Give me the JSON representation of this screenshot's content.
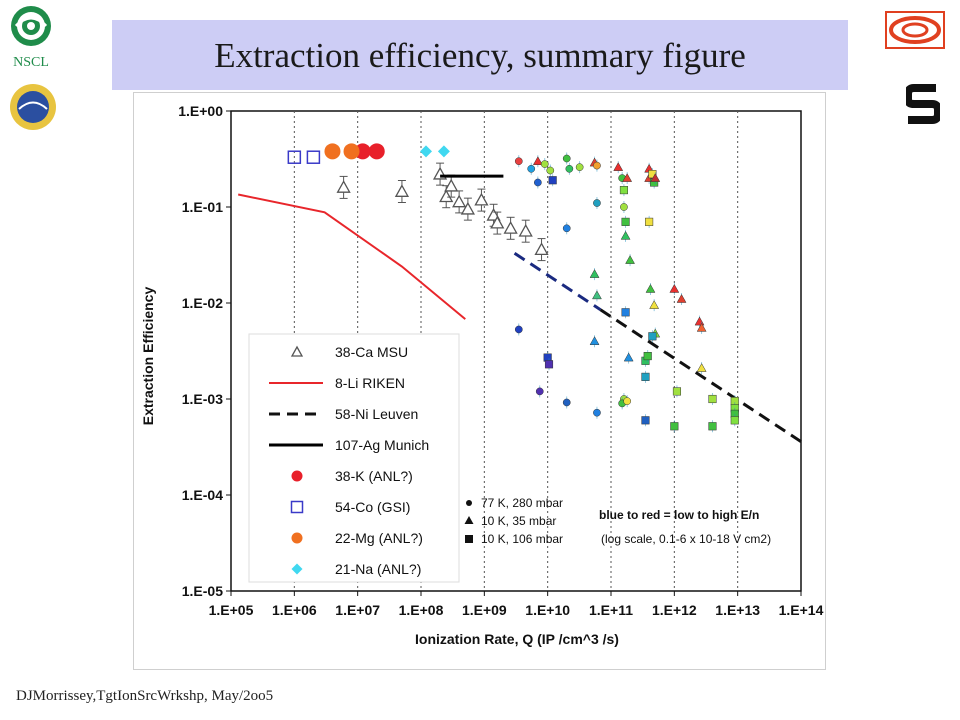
{
  "title": "Extraction efficiency, summary figure",
  "logos": {
    "nscl_text": "NSCL"
  },
  "footer": "DJMorrissey,TgtIonSrcWrkshp, May/2oo5",
  "colors": {
    "title_band": "#cdcdf5",
    "msu": "#555555",
    "riken": "#e8262b",
    "leuven": "#111111",
    "munich": "#000000",
    "anl_k": "#e8202a",
    "gsi": "#3a3ac8",
    "anl_mg": "#f07020",
    "anl_na": "#40d8f0"
  },
  "chart_data": {
    "type": "scatter",
    "xlabel": "Ionization Rate, Q (IP /cm^3 /s)",
    "ylabel": "Extraction Efficiency",
    "xscale": "log",
    "yscale": "log",
    "xlim": [
      100000,
      100000000000000
    ],
    "ylim": [
      1e-05,
      1
    ],
    "x_ticks": [
      "1.E+05",
      "1.E+06",
      "1.E+07",
      "1.E+08",
      "1.E+09",
      "1.E+10",
      "1.E+11",
      "1.E+12",
      "1.E+13",
      "1.E+14"
    ],
    "y_ticks": [
      "1.E+00",
      "1.E-01",
      "1.E-02",
      "1.E-03",
      "1.E-04",
      "1.E-05"
    ],
    "grid": "vertical-dotted",
    "legend_position": "lower-left",
    "series": [
      {
        "name": "38-Ca MSU",
        "kind": "open-triangle-errorbar",
        "color": "#555555",
        "points": [
          [
            6000000,
            0.16
          ],
          [
            50000000,
            0.145
          ],
          [
            200000000,
            0.22
          ],
          [
            250000000,
            0.128
          ],
          [
            300000000,
            0.165
          ],
          [
            400000000,
            0.113
          ],
          [
            550000000,
            0.095
          ],
          [
            900000000,
            0.118
          ],
          [
            1400000000,
            0.082
          ],
          [
            1600000000,
            0.068
          ],
          [
            2600000000,
            0.06
          ],
          [
            4500000000,
            0.056
          ],
          [
            8000000000,
            0.036
          ]
        ]
      },
      {
        "name": "8-Li RIKEN",
        "kind": "line",
        "color": "#e8262b",
        "points": [
          [
            130000,
            0.135
          ],
          [
            3000000,
            0.088
          ],
          [
            50000000,
            0.024
          ],
          [
            500000000,
            0.0068
          ]
        ]
      },
      {
        "name": "58-Ni Leuven",
        "kind": "dashed-line",
        "color": "#111111",
        "points": [
          [
            3000000000,
            0.033
          ],
          [
            100000000000000,
            0.00036
          ]
        ],
        "dash_colors": [
          "#1a2a80",
          "#111111"
        ]
      },
      {
        "name": "107-Ag Munich",
        "kind": "line",
        "color": "#000000",
        "points": [
          [
            200000000,
            0.21
          ],
          [
            2000000000,
            0.21
          ]
        ]
      },
      {
        "name": "38-K (ANL?)",
        "kind": "filled-circle",
        "color": "#e8202a",
        "points": [
          [
            12000000,
            0.38
          ],
          [
            20000000,
            0.38
          ]
        ]
      },
      {
        "name": "54-Co (GSI)",
        "kind": "open-square",
        "color": "#3a3ac8",
        "points": [
          [
            1000000,
            0.33
          ],
          [
            2000000,
            0.33
          ]
        ]
      },
      {
        "name": "22-Mg (ANL?)",
        "kind": "filled-circle",
        "color": "#f07020",
        "points": [
          [
            4000000,
            0.38
          ],
          [
            8000000,
            0.38
          ]
        ]
      },
      {
        "name": "21-Na (ANL?)",
        "kind": "filled-diamond",
        "color": "#40d8f0",
        "points": [
          [
            120000000,
            0.38
          ],
          [
            230000000,
            0.38
          ]
        ]
      }
    ],
    "scan_data": {
      "colormap_note": "blue to red = low to high E/n",
      "colormap_range": "(log scale, 0.1-6 x 10-18 V cm2)",
      "marker_legend": [
        {
          "shape": "circle",
          "label": "77 K, 280 mbar"
        },
        {
          "shape": "triangle",
          "label": "10 K, 35 mbar"
        },
        {
          "shape": "square",
          "label": "10 K, 106 mbar"
        }
      ],
      "points": [
        {
          "x": 3500000000,
          "y": 0.3,
          "shape": "circle",
          "color": "#e84040"
        },
        {
          "x": 5500000000,
          "y": 0.25,
          "shape": "circle",
          "color": "#20a0e0"
        },
        {
          "x": 7000000000,
          "y": 0.3,
          "shape": "triangle",
          "color": "#e83030"
        },
        {
          "x": 7000000000,
          "y": 0.18,
          "shape": "circle",
          "color": "#2060d0"
        },
        {
          "x": 9000000000,
          "y": 0.28,
          "shape": "circle",
          "color": "#a0e040"
        },
        {
          "x": 11000000000,
          "y": 0.24,
          "shape": "circle",
          "color": "#a0e040"
        },
        {
          "x": 12000000000,
          "y": 0.19,
          "shape": "square",
          "color": "#2040c0"
        },
        {
          "x": 20000000000,
          "y": 0.32,
          "shape": "circle",
          "color": "#40c040"
        },
        {
          "x": 20000000000,
          "y": 0.06,
          "shape": "circle",
          "color": "#2080e0"
        },
        {
          "x": 22000000000,
          "y": 0.25,
          "shape": "circle",
          "color": "#30c060"
        },
        {
          "x": 32000000000,
          "y": 0.26,
          "shape": "circle",
          "color": "#a0e040"
        },
        {
          "x": 55000000000,
          "y": 0.29,
          "shape": "triangle",
          "color": "#e04030"
        },
        {
          "x": 60000000000,
          "y": 0.27,
          "shape": "circle",
          "color": "#f0a030"
        },
        {
          "x": 60000000000,
          "y": 0.11,
          "shape": "circle",
          "color": "#20a0c0"
        },
        {
          "x": 55000000000,
          "y": 0.02,
          "shape": "triangle",
          "color": "#30c060"
        },
        {
          "x": 60000000000,
          "y": 0.012,
          "shape": "triangle",
          "color": "#40c080"
        },
        {
          "x": 55000000000,
          "y": 0.004,
          "shape": "triangle",
          "color": "#2090e0"
        },
        {
          "x": 3500000000,
          "y": 0.0053,
          "shape": "circle",
          "color": "#2040c0"
        },
        {
          "x": 10000000000,
          "y": 0.0027,
          "shape": "square",
          "color": "#2040c0"
        },
        {
          "x": 10500000000,
          "y": 0.0023,
          "shape": "square",
          "color": "#5030b0"
        },
        {
          "x": 7500000000,
          "y": 0.0012,
          "shape": "circle",
          "color": "#5030b0"
        },
        {
          "x": 20000000000,
          "y": 0.00092,
          "shape": "circle",
          "color": "#2060c0"
        },
        {
          "x": 60000000000,
          "y": 0.00072,
          "shape": "circle",
          "color": "#2080e0"
        },
        {
          "x": 130000000000,
          "y": 0.26,
          "shape": "triangle",
          "color": "#e83030"
        },
        {
          "x": 150000000000,
          "y": 0.2,
          "shape": "circle",
          "color": "#40c040"
        },
        {
          "x": 160000000000,
          "y": 0.15,
          "shape": "square",
          "color": "#80e040"
        },
        {
          "x": 180000000000,
          "y": 0.2,
          "shape": "triangle",
          "color": "#e04030"
        },
        {
          "x": 160000000000,
          "y": 0.1,
          "shape": "circle",
          "color": "#a0e040"
        },
        {
          "x": 170000000000,
          "y": 0.07,
          "shape": "square",
          "color": "#40c040"
        },
        {
          "x": 170000000000,
          "y": 0.05,
          "shape": "triangle",
          "color": "#30c060"
        },
        {
          "x": 200000000000,
          "y": 0.028,
          "shape": "triangle",
          "color": "#40c040"
        },
        {
          "x": 170000000000,
          "y": 0.008,
          "shape": "square",
          "color": "#2080e0"
        },
        {
          "x": 190000000000,
          "y": 0.0027,
          "shape": "triangle",
          "color": "#2090e0"
        },
        {
          "x": 160000000000,
          "y": 0.001,
          "shape": "circle",
          "color": "#a0e040"
        },
        {
          "x": 150000000000,
          "y": 0.0009,
          "shape": "circle",
          "color": "#40c040"
        },
        {
          "x": 180000000000,
          "y": 0.00095,
          "shape": "circle",
          "color": "#f0e040"
        },
        {
          "x": 400000000000,
          "y": 0.2,
          "shape": "triangle",
          "color": "#e04030"
        },
        {
          "x": 400000000000,
          "y": 0.25,
          "shape": "triangle",
          "color": "#e83030"
        },
        {
          "x": 450000000000,
          "y": 0.22,
          "shape": "square",
          "color": "#f0e040"
        },
        {
          "x": 480000000000,
          "y": 0.18,
          "shape": "square",
          "color": "#40c040"
        },
        {
          "x": 500000000000,
          "y": 0.2,
          "shape": "triangle",
          "color": "#c03030"
        },
        {
          "x": 400000000000,
          "y": 0.07,
          "shape": "square",
          "color": "#f0e040"
        },
        {
          "x": 420000000000,
          "y": 0.014,
          "shape": "triangle",
          "color": "#40c040"
        },
        {
          "x": 480000000000,
          "y": 0.0095,
          "shape": "triangle",
          "color": "#f0e040"
        },
        {
          "x": 500000000000,
          "y": 0.0048,
          "shape": "triangle",
          "color": "#80e040"
        },
        {
          "x": 450000000000,
          "y": 0.0045,
          "shape": "square",
          "color": "#20a0c0"
        },
        {
          "x": 350000000000,
          "y": 0.0025,
          "shape": "square",
          "color": "#30c060"
        },
        {
          "x": 380000000000,
          "y": 0.0028,
          "shape": "square",
          "color": "#40c040"
        },
        {
          "x": 350000000000,
          "y": 0.0017,
          "shape": "square",
          "color": "#20a0c0"
        },
        {
          "x": 350000000000,
          "y": 0.0006,
          "shape": "square",
          "color": "#2060c0"
        },
        {
          "x": 1000000000000,
          "y": 0.014,
          "shape": "triangle",
          "color": "#e83030"
        },
        {
          "x": 1300000000000,
          "y": 0.011,
          "shape": "triangle",
          "color": "#e04030"
        },
        {
          "x": 2500000000000,
          "y": 0.0064,
          "shape": "triangle",
          "color": "#e83030"
        },
        {
          "x": 2700000000000,
          "y": 0.0055,
          "shape": "triangle",
          "color": "#f06030"
        },
        {
          "x": 2700000000000,
          "y": 0.0021,
          "shape": "triangle",
          "color": "#f0e040"
        },
        {
          "x": 1100000000000,
          "y": 0.0012,
          "shape": "square",
          "color": "#a0e040"
        },
        {
          "x": 1000000000000,
          "y": 0.00052,
          "shape": "square",
          "color": "#40c040"
        },
        {
          "x": 4000000000000,
          "y": 0.001,
          "shape": "square",
          "color": "#a0e040"
        },
        {
          "x": 4000000000000,
          "y": 0.00052,
          "shape": "square",
          "color": "#40c040"
        },
        {
          "x": 9000000000000,
          "y": 0.00095,
          "shape": "square",
          "color": "#a0e040"
        },
        {
          "x": 9000000000000,
          "y": 0.0008,
          "shape": "square",
          "color": "#80e040"
        },
        {
          "x": 9000000000000,
          "y": 0.0007,
          "shape": "square",
          "color": "#40c040"
        },
        {
          "x": 9000000000000,
          "y": 0.0006,
          "shape": "square",
          "color": "#80e040"
        }
      ]
    }
  }
}
